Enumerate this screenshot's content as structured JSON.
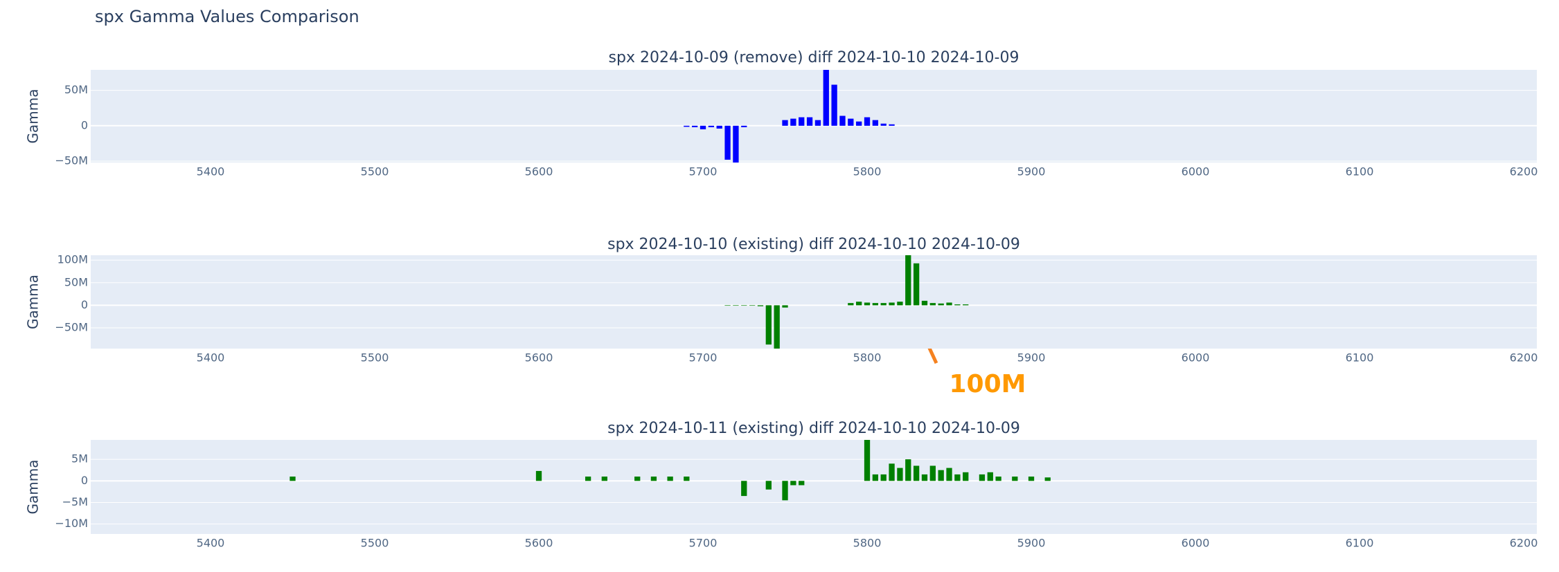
{
  "title": "spx Gamma Values Comparison",
  "chart_data": [
    {
      "type": "bar",
      "title": "spx 2024-10-09 (remove) diff 2024-10-10 2024-10-09",
      "y_label": "Gamma",
      "color": "#0000ff",
      "grid": true,
      "x": [
        5690,
        5695,
        5700,
        5705,
        5710,
        5715,
        5720,
        5725,
        5750,
        5755,
        5760,
        5765,
        5770,
        5775,
        5780,
        5785,
        5790,
        5795,
        5800,
        5805,
        5810,
        5815
      ],
      "values": [
        -1500000,
        -2000000,
        -5000000,
        -2000000,
        -4000000,
        -48000000,
        -52000000,
        -2000000,
        8000000,
        10000000,
        12000000,
        12000000,
        8000000,
        79000000,
        58000000,
        14000000,
        10000000,
        6000000,
        12000000,
        8000000,
        3000000,
        2000000
      ],
      "xlim": [
        5327,
        6208
      ],
      "xticks": [
        5400,
        5500,
        5600,
        5700,
        5800,
        5900,
        6000,
        6100,
        6200
      ],
      "ylim": [
        -52000000,
        79000000
      ],
      "yticks": [
        {
          "value": 50000000,
          "label": "50M"
        },
        0,
        {
          "value": -50000000,
          "label": "−50M"
        }
      ]
    },
    {
      "type": "bar",
      "title": "spx 2024-10-10 (existing) diff 2024-10-10 2024-10-09",
      "y_label": "Gamma",
      "color": "#008000",
      "grid": true,
      "x": [
        5715,
        5720,
        5725,
        5730,
        5735,
        5740,
        5745,
        5750,
        5790,
        5795,
        5800,
        5805,
        5810,
        5815,
        5820,
        5825,
        5830,
        5835,
        5840,
        5845,
        5850,
        5855,
        5860
      ],
      "values": [
        -1000000,
        -1000000,
        -1000000,
        -1000000,
        -2000000,
        -87000000,
        -96000000,
        -5000000,
        5000000,
        8000000,
        6000000,
        5000000,
        5000000,
        6000000,
        8000000,
        111000000,
        93000000,
        10000000,
        5000000,
        4000000,
        6000000,
        2000000,
        2000000
      ],
      "xlim": [
        5327,
        6208
      ],
      "xticks": [
        5400,
        5500,
        5600,
        5700,
        5800,
        5900,
        6000,
        6100,
        6200
      ],
      "ylim": [
        -96000000,
        111000000
      ],
      "yticks": [
        {
          "value": 100000000,
          "label": "100M"
        },
        {
          "value": 50000000,
          "label": "50M"
        },
        0,
        {
          "value": -50000000,
          "label": "−50M"
        }
      ],
      "annotations": [
        {
          "text": "100M"
        }
      ]
    },
    {
      "type": "bar",
      "title": "spx 2024-10-11 (existing) diff 2024-10-10 2024-10-09",
      "y_label": "Gamma",
      "color": "#008000",
      "grid": true,
      "x": [
        5450,
        5600,
        5630,
        5640,
        5660,
        5670,
        5680,
        5690,
        5725,
        5740,
        5750,
        5755,
        5760,
        5800,
        5805,
        5810,
        5815,
        5820,
        5825,
        5830,
        5835,
        5840,
        5845,
        5850,
        5855,
        5860,
        5870,
        5875,
        5880,
        5890,
        5900,
        5910
      ],
      "values": [
        1000000,
        2300000,
        1000000,
        1000000,
        1000000,
        1000000,
        1000000,
        1000000,
        -3500000,
        -2000000,
        -4500000,
        -1000000,
        -1000000,
        9500000,
        1500000,
        1500000,
        4000000,
        3000000,
        5000000,
        3500000,
        1500000,
        3500000,
        2500000,
        3000000,
        1500000,
        2000000,
        1500000,
        2000000,
        1000000,
        1000000,
        1000000,
        800000
      ],
      "xlim": [
        5327,
        6208
      ],
      "xticks": [
        5400,
        5500,
        5600,
        5700,
        5800,
        5900,
        6000,
        6100,
        6200
      ],
      "ylim": [
        -12300000,
        9500000
      ],
      "yticks": [
        {
          "value": 5000000,
          "label": "5M"
        },
        0,
        {
          "value": -5000000,
          "label": "−5M"
        },
        {
          "value": -10000000,
          "label": "−10M"
        }
      ]
    }
  ]
}
